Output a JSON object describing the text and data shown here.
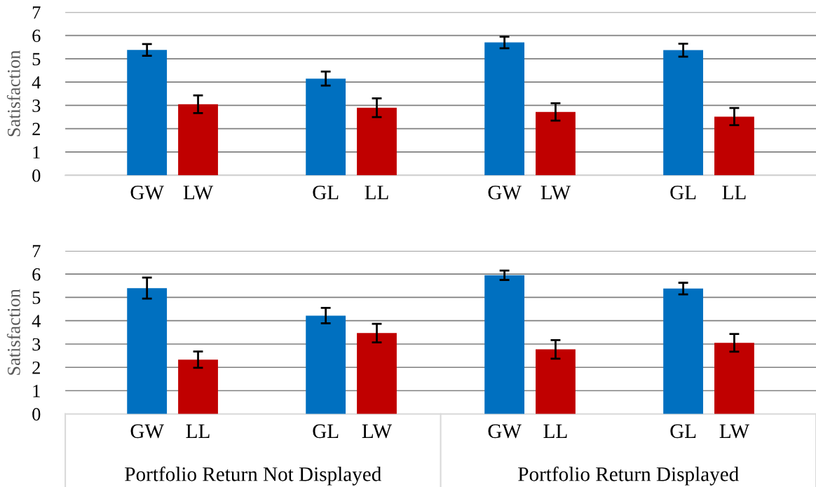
{
  "chart_data": [
    {
      "type": "bar",
      "ylabel": "Satisfaction",
      "categories": [
        "GW",
        "LW",
        "GL",
        "LL",
        "GW",
        "LW",
        "GL",
        "LL"
      ],
      "values": [
        5.38,
        3.05,
        4.15,
        2.9,
        5.7,
        2.72,
        5.37,
        2.52
      ],
      "errors": [
        0.25,
        0.38,
        0.3,
        0.4,
        0.25,
        0.37,
        0.28,
        0.37
      ],
      "colors": [
        "#0070c0",
        "#c00000",
        "#0070c0",
        "#c00000",
        "#0070c0",
        "#c00000",
        "#0070c0",
        "#c00000"
      ],
      "ylim": [
        0,
        7
      ],
      "yticks": [
        0,
        1,
        2,
        3,
        4,
        5,
        6,
        7
      ],
      "grid": "y",
      "legend": false
    },
    {
      "type": "bar",
      "ylabel": "Satisfaction",
      "categories": [
        "GW",
        "LL",
        "GL",
        "LW",
        "GW",
        "LL",
        "GL",
        "LW"
      ],
      "values": [
        5.4,
        2.33,
        4.22,
        3.47,
        5.95,
        2.77,
        5.38,
        3.05
      ],
      "errors": [
        0.45,
        0.35,
        0.33,
        0.4,
        0.2,
        0.4,
        0.25,
        0.38
      ],
      "colors": [
        "#0070c0",
        "#c00000",
        "#0070c0",
        "#c00000",
        "#0070c0",
        "#c00000",
        "#0070c0",
        "#c00000"
      ],
      "ylim": [
        0,
        7
      ],
      "yticks": [
        0,
        1,
        2,
        3,
        4,
        5,
        6,
        7
      ],
      "grid": "y",
      "legend": false,
      "annotations": [
        "Portfolio Return Not Displayed",
        "Portfolio Return Displayed"
      ]
    }
  ]
}
